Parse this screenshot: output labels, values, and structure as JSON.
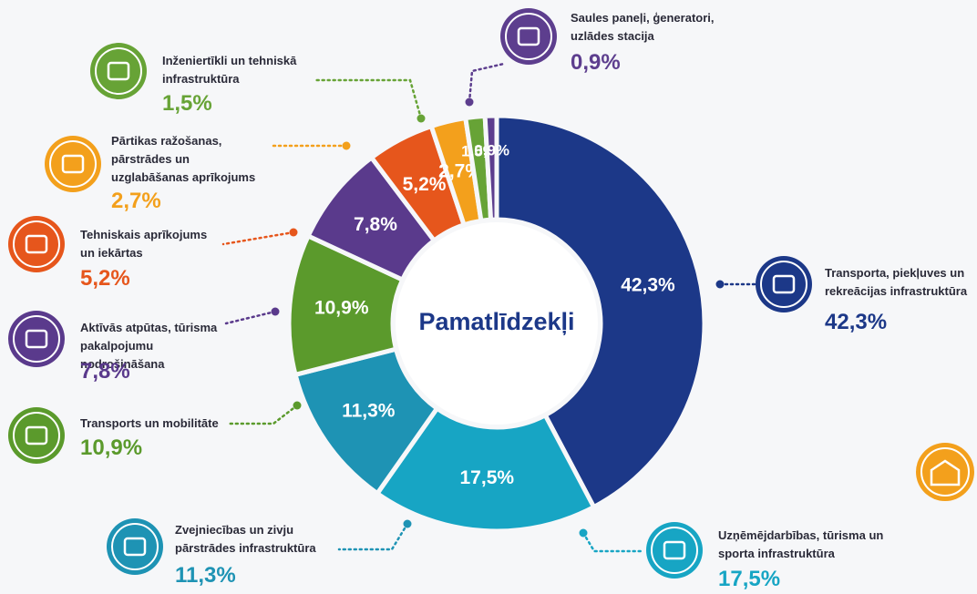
{
  "chart_data": {
    "type": "donut",
    "title": "Pamatlīdzekļi",
    "categories": [
      "Transporta, piekļuves un rekreācijas infrastruktūra",
      "Uzņēmējdarbības, tūrisma un sporta infrastruktūra",
      "Zvejniecības un zivju pārstrādes infrastruktūra",
      "Transports un mobilitāte",
      "Aktīvās atpūtas, tūrisma pakalpojumu nodrošināšana",
      "Tehniskais aprīkojums un iekārtas",
      "Pārtikas ražošanas, pārstrādes un uzglabāšanas aprīkojums",
      "Inženiertīkli un tehniskā infrastruktūra",
      "Saules paneļi, ģeneratori, uzlādes stacija"
    ],
    "values": [
      42.3,
      17.5,
      11.3,
      10.9,
      7.8,
      5.2,
      2.7,
      1.5,
      0.9
    ],
    "value_labels": [
      "42,3%",
      "17,5%",
      "11,3%",
      "10,9%",
      "7,8%",
      "5,2%",
      "2,7%",
      "1,5%",
      "0,9%"
    ],
    "colors": [
      "#1c3888",
      "#17a5c4",
      "#1e93b4",
      "#5b9a2c",
      "#5a3a8c",
      "#e6561c",
      "#f3a01c",
      "#67a336",
      "#5d3e8e"
    ]
  }
}
